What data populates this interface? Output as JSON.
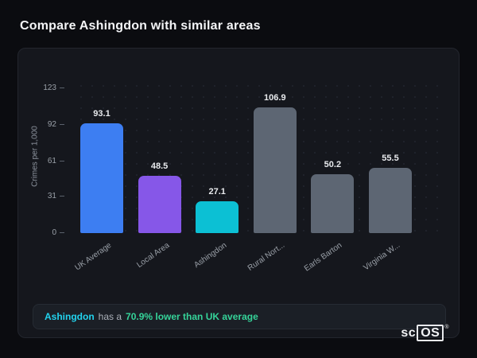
{
  "page": {
    "title": "Compare Ashingdon with similar areas"
  },
  "chart_data": {
    "type": "bar",
    "title": "Compare Ashingdon with similar areas",
    "ylabel": "Crimes per 1,000",
    "xlabel": "",
    "ylim": [
      0,
      123
    ],
    "yticks": [
      0,
      31,
      61,
      92,
      123
    ],
    "categories": [
      "UK Average",
      "Local Area",
      "Ashingdon",
      "Rural Nort...",
      "Earls Barton",
      "Virginia W..."
    ],
    "values": [
      93.1,
      48.5,
      27.1,
      106.9,
      50.2,
      55.5
    ],
    "bar_colors": [
      "#3d7ef2",
      "#8657e8",
      "#0cc0d4",
      "#5d6673",
      "#5d6673",
      "#5d6673"
    ],
    "grid": "dotted",
    "legend": "none"
  },
  "footer": {
    "area_name": "Ashingdon",
    "middle_text": "has a",
    "highlight_text": "70.9% lower than UK average",
    "area_color": "#22d3ee",
    "highlight_color": "#35d399"
  },
  "branding": {
    "logo_prefix": "sc",
    "logo_suffix": "OS",
    "registered_mark": "®"
  }
}
